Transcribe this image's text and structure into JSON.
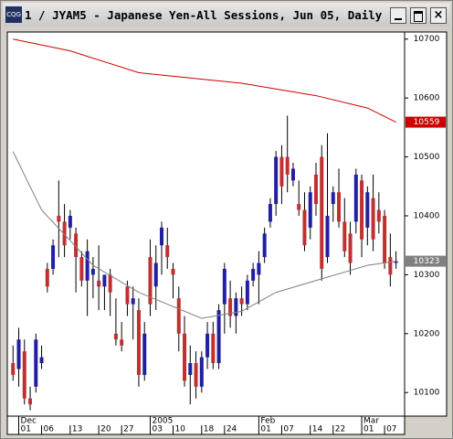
{
  "window_title": "1 / JYAM5 - Japanese Yen-All Sessions, Jun 05, Daily",
  "chart_data": {
    "type": "candlestick",
    "open": [
      10150,
      10140,
      10170,
      10090,
      10110,
      10150,
      10310,
      10310,
      10400,
      10390,
      10380,
      10370,
      10330,
      10290,
      10300,
      10290,
      10280,
      10300,
      10200,
      10190,
      10280,
      10250,
      10240,
      10130,
      10330,
      10280,
      10350,
      10350,
      10310,
      10260,
      10200,
      10130,
      10150,
      10110,
      10160,
      10200,
      10150,
      10250,
      10260,
      10230,
      10260,
      10250,
      10290,
      10300,
      10330,
      10390,
      10420,
      10500,
      10500,
      10460,
      10420,
      10410,
      10380,
      10470,
      10500,
      10330,
      10420,
      10440,
      10390,
      10370,
      10390,
      10460,
      10380,
      10430,
      10410,
      10400,
      10330,
      10320
    ],
    "high": [
      10180,
      10210,
      10190,
      10110,
      10200,
      10180,
      10320,
      10360,
      10460,
      10420,
      10410,
      10380,
      10340,
      10360,
      10330,
      10350,
      10300,
      10310,
      10260,
      10220,
      10290,
      10280,
      10260,
      10220,
      10360,
      10350,
      10390,
      10380,
      10320,
      10280,
      10230,
      10180,
      10170,
      10170,
      10220,
      10220,
      10250,
      10320,
      10290,
      10270,
      10280,
      10300,
      10320,
      10340,
      10380,
      10430,
      10510,
      10520,
      10570,
      10490,
      10460,
      10440,
      10450,
      10490,
      10520,
      10540,
      10450,
      10480,
      10430,
      10390,
      10480,
      10470,
      10450,
      10470,
      10440,
      10410,
      10370,
      10340
    ],
    "low": [
      10120,
      10110,
      10080,
      10070,
      10100,
      10140,
      10270,
      10300,
      10330,
      10330,
      10360,
      10270,
      10280,
      10230,
      10260,
      10240,
      10240,
      10230,
      10180,
      10170,
      10230,
      10190,
      10110,
      10120,
      10230,
      10240,
      10300,
      10310,
      10260,
      10170,
      10110,
      10080,
      10090,
      10100,
      10140,
      10140,
      10140,
      10200,
      10210,
      10200,
      10230,
      10240,
      10280,
      10250,
      10320,
      10380,
      10400,
      10420,
      10440,
      10450,
      10400,
      10340,
      10360,
      10400,
      10290,
      10320,
      10390,
      10380,
      10330,
      10300,
      10370,
      10330,
      10350,
      10340,
      10370,
      10310,
      10280,
      10310
    ],
    "close": [
      10130,
      10190,
      10090,
      10080,
      10190,
      10160,
      10280,
      10350,
      10390,
      10350,
      10400,
      10330,
      10290,
      10340,
      10310,
      10280,
      10300,
      10270,
      10190,
      10180,
      10250,
      10260,
      10130,
      10200,
      10250,
      10320,
      10380,
      10330,
      10300,
      10200,
      10120,
      10150,
      10110,
      10160,
      10200,
      10150,
      10240,
      10310,
      10230,
      10260,
      10250,
      10290,
      10310,
      10320,
      10370,
      10420,
      10500,
      10450,
      10470,
      10480,
      10410,
      10350,
      10440,
      10420,
      10310,
      10400,
      10440,
      10390,
      10340,
      10320,
      10470,
      10360,
      10440,
      10360,
      10390,
      10320,
      10300,
      10323
    ],
    "up_color": "#2020a0",
    "down_color": "#c03030",
    "lines": [
      {
        "color": "#cc0000",
        "x": [
          0,
          10,
          22,
          30,
          40,
          53,
          62,
          67
        ],
        "values": [
          10700,
          10680,
          10643,
          10635,
          10625,
          10604,
          10583,
          10559
        ]
      },
      {
        "color": "#808080",
        "x": [
          0,
          5,
          14,
          22,
          33,
          40,
          46,
          54,
          62,
          67
        ],
        "values": [
          10509,
          10410,
          10316,
          10270,
          10226,
          10238,
          10270,
          10293,
          10316,
          10323
        ]
      }
    ],
    "last_labels": [
      {
        "value": 10559,
        "color": "#cc0000"
      },
      {
        "value": 10323,
        "color": "#808080"
      }
    ],
    "ylim": [
      10060,
      10712
    ],
    "yticks": [
      10100,
      10200,
      10300,
      10400,
      10500,
      10600,
      10700
    ],
    "xlim": [
      -1,
      68.5
    ],
    "xticks": [
      {
        "value": 1,
        "label": "01"
      },
      {
        "value": 5,
        "label": "06"
      },
      {
        "value": 10,
        "label": "13"
      },
      {
        "value": 15,
        "label": "20"
      },
      {
        "value": 19,
        "label": "27"
      },
      {
        "value": 24,
        "label": "03"
      },
      {
        "value": 28,
        "label": "10"
      },
      {
        "value": 33,
        "label": "18"
      },
      {
        "value": 37,
        "label": "24"
      },
      {
        "value": 43,
        "label": "01"
      },
      {
        "value": 47,
        "label": "07"
      },
      {
        "value": 52,
        "label": "14"
      },
      {
        "value": 56,
        "label": "22"
      },
      {
        "value": 61,
        "label": "01"
      },
      {
        "value": 65,
        "label": "07"
      }
    ],
    "xticks_major": [
      {
        "value": 1,
        "label": "Dec"
      },
      {
        "value": 24,
        "label": "2005"
      },
      {
        "value": 43,
        "label": "Feb"
      },
      {
        "value": 61,
        "label": "Mar"
      }
    ]
  }
}
